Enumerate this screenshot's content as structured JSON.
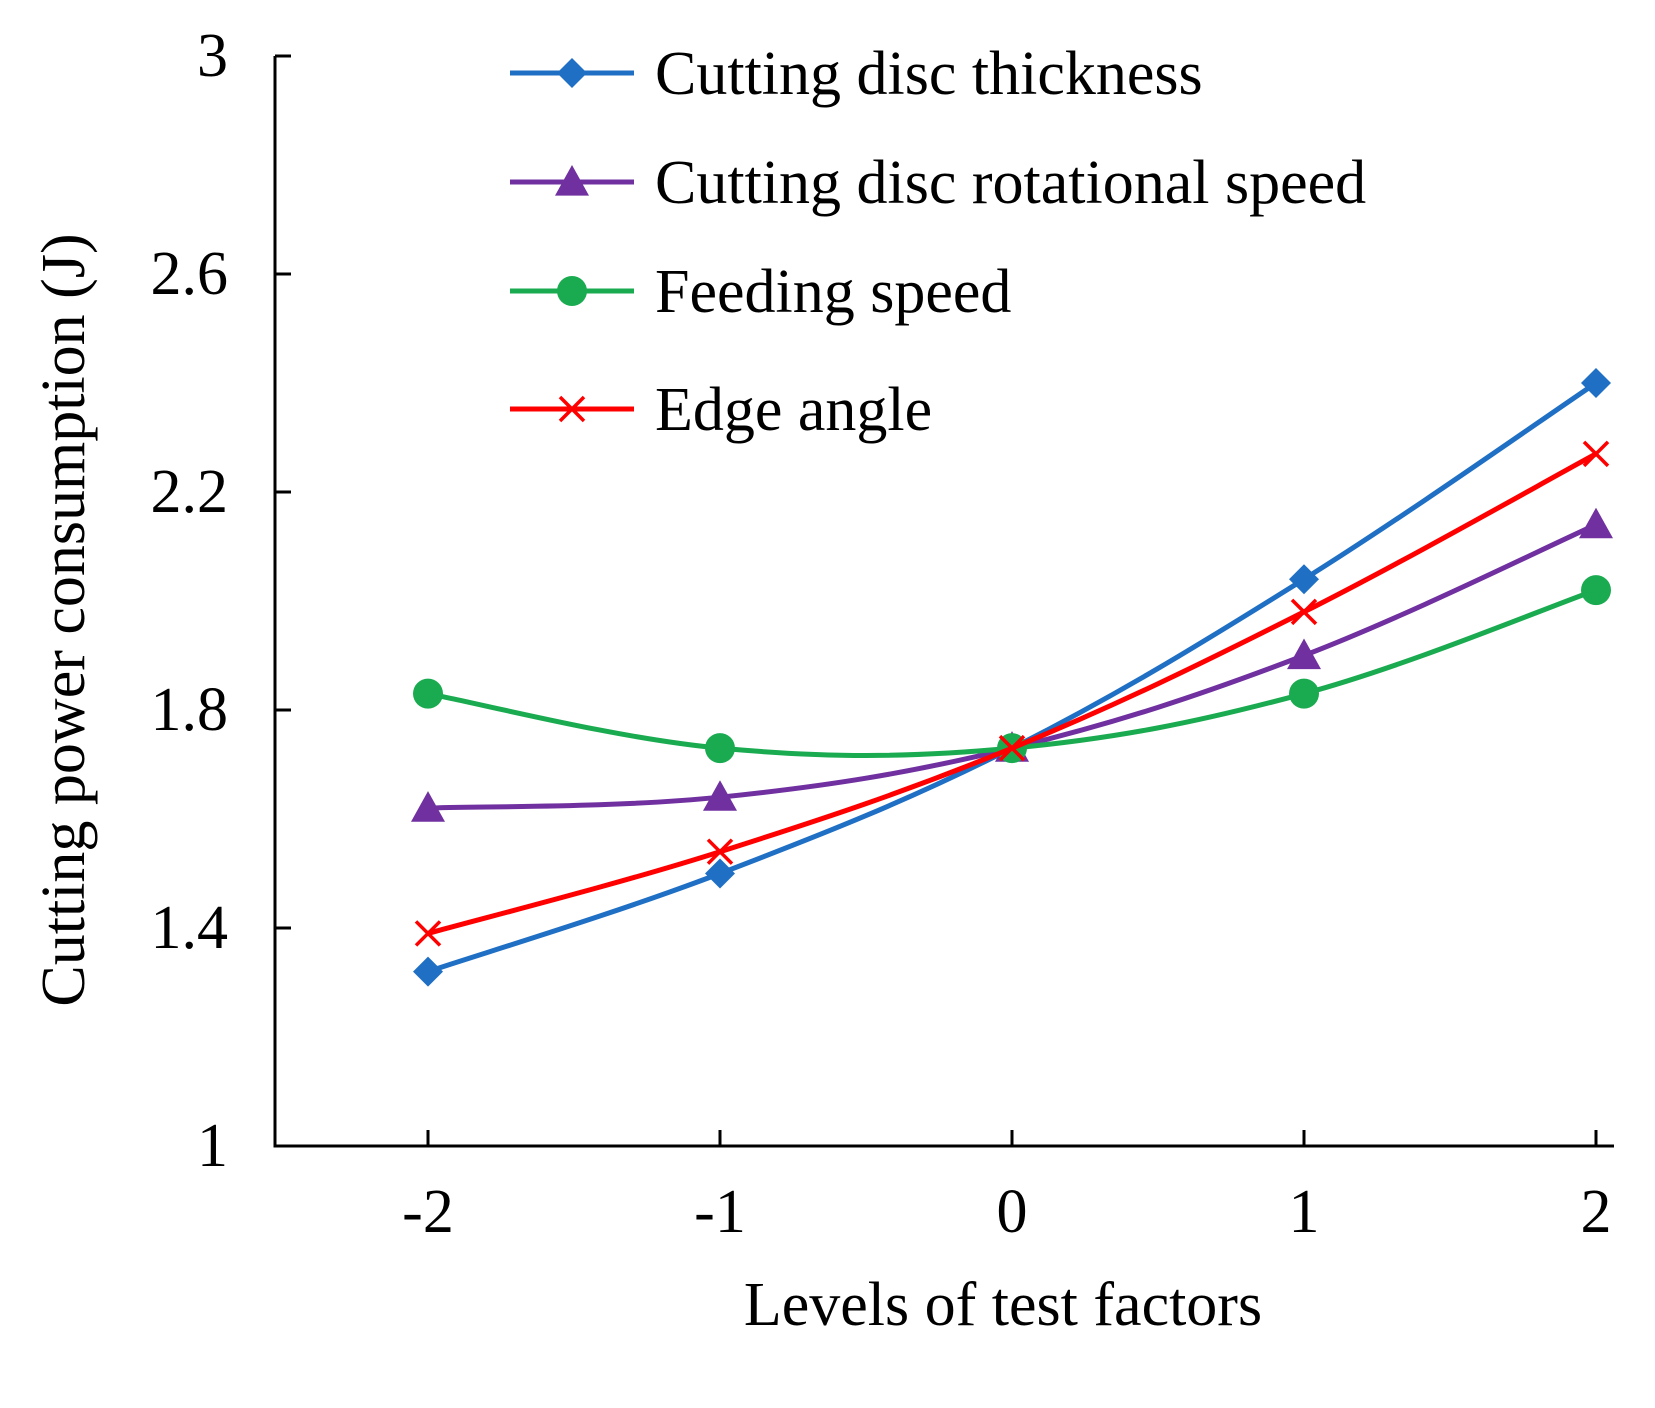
{
  "chart_data": {
    "type": "line",
    "title": "",
    "xlabel": "Levels of test factors",
    "ylabel": "Cutting power consumption (J)",
    "x": [
      -2,
      -1,
      0,
      1,
      2
    ],
    "x_tick_labels": [
      "-2",
      "-1",
      "0",
      "1",
      "2"
    ],
    "xlim": [
      -2.5,
      2
    ],
    "ylim": [
      1,
      3
    ],
    "y_ticks": [
      1,
      1.4,
      1.8,
      2.2,
      2.6,
      3
    ],
    "y_tick_labels": [
      "1",
      "1.4",
      "1.8",
      "2.2",
      "2.6",
      "3"
    ],
    "grid": false,
    "legend_position": "top",
    "series": [
      {
        "name": "Cutting disc thickness",
        "color": "#1f6fc5",
        "marker": "diamond",
        "values": [
          1.32,
          1.5,
          1.73,
          2.04,
          2.4
        ]
      },
      {
        "name": "Cutting disc rotational speed",
        "color": "#7030a0",
        "marker": "triangle",
        "values": [
          1.62,
          1.64,
          1.73,
          1.9,
          2.14
        ]
      },
      {
        "name": "Feeding speed",
        "color": "#1aab50",
        "marker": "circle",
        "values": [
          1.83,
          1.73,
          1.73,
          1.83,
          2.02
        ]
      },
      {
        "name": "Edge angle",
        "color": "#ff0000",
        "marker": "x",
        "values": [
          1.39,
          1.54,
          1.73,
          1.98,
          2.27
        ]
      }
    ]
  }
}
